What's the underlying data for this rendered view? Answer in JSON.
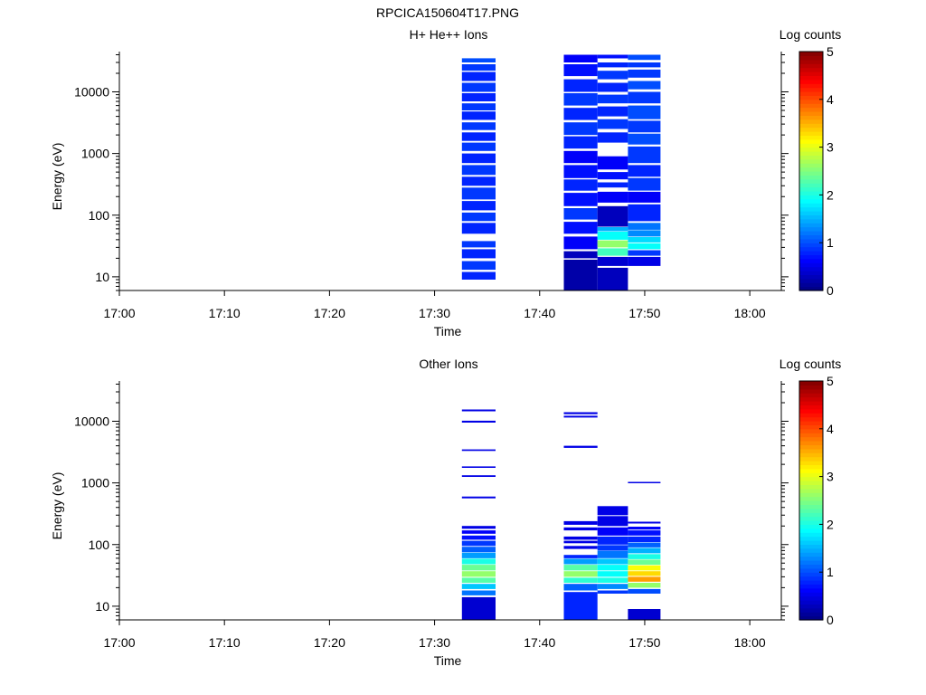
{
  "figure_title": "RPCICA150604T17.PNG",
  "colors": {
    "axis": "#000000",
    "background": "#ffffff"
  },
  "colorbar": {
    "label": "Log counts",
    "ticks": [
      "0",
      "1",
      "2",
      "3",
      "4",
      "5"
    ],
    "range": [
      0,
      5
    ],
    "colormap": "jet"
  },
  "chart_data": [
    {
      "type": "heatmap",
      "title": "H+ He++ Ions",
      "xlabel": "Time",
      "ylabel": "Energy (eV)",
      "yscale": "log",
      "xlim": [
        "17:00",
        "18:03"
      ],
      "ylim": [
        6,
        45000
      ],
      "xticks": [
        "17:00",
        "17:10",
        "17:20",
        "17:30",
        "17:40",
        "17:50",
        "18:00"
      ],
      "yticks": [
        "10",
        "100",
        "1000",
        "10000"
      ],
      "columns": [
        {
          "t0": "17:32.6",
          "t1": "17:35.8",
          "rows": [
            [
              30000,
              35000,
              1.0
            ],
            [
              22000,
              28000,
              0.9
            ],
            [
              15000,
              21000,
              0.8
            ],
            [
              10000,
              14000,
              0.9
            ],
            [
              7000,
              9500,
              0.8
            ],
            [
              5000,
              6500,
              0.9
            ],
            [
              3500,
              4800,
              0.8
            ],
            [
              2400,
              3200,
              0.9
            ],
            [
              1600,
              2200,
              0.8
            ],
            [
              1100,
              1500,
              0.9
            ],
            [
              700,
              1000,
              0.8
            ],
            [
              450,
              650,
              0.9
            ],
            [
              300,
              420,
              0.8
            ],
            [
              180,
              280,
              0.9
            ],
            [
              120,
              170,
              0.8
            ],
            [
              80,
              110,
              0.9
            ],
            [
              50,
              75,
              0.8
            ],
            [
              30,
              38,
              0.9
            ],
            [
              20,
              28,
              0.8
            ],
            [
              13,
              18,
              0.9
            ],
            [
              9,
              12,
              0.8
            ]
          ]
        },
        {
          "t0": "17:42.3",
          "t1": "17:45.5",
          "rows": [
            [
              30000,
              40000,
              0.6
            ],
            [
              18000,
              28000,
              0.7
            ],
            [
              10000,
              16000,
              0.8
            ],
            [
              6000,
              9500,
              0.9
            ],
            [
              3500,
              5500,
              0.8
            ],
            [
              2000,
              3200,
              0.9
            ],
            [
              1200,
              1900,
              0.8
            ],
            [
              700,
              1100,
              0.6
            ],
            [
              400,
              650,
              0.7
            ],
            [
              250,
              380,
              0.8
            ],
            [
              140,
              230,
              0.7
            ],
            [
              85,
              130,
              0.9
            ],
            [
              50,
              78,
              0.7
            ],
            [
              28,
              45,
              0.6
            ],
            [
              20,
              26,
              0.3
            ],
            [
              6,
              19,
              0.2
            ]
          ]
        },
        {
          "t0": "17:45.5",
          "t1": "17:48.4",
          "rows": [
            [
              35000,
              40000,
              0.7
            ],
            [
              25000,
              30000,
              0.8
            ],
            [
              16000,
              22000,
              0.9
            ],
            [
              10000,
              14000,
              0.8
            ],
            [
              6500,
              9000,
              0.9
            ],
            [
              4000,
              5800,
              0.8
            ],
            [
              2500,
              3600,
              0.9
            ],
            [
              1500,
              2200,
              0.8
            ],
            [
              550,
              900,
              0.6
            ],
            [
              380,
              500,
              0.7
            ],
            [
              280,
              340,
              0.8
            ],
            [
              160,
              240,
              0.6
            ],
            [
              65,
              140,
              0.3
            ],
            [
              55,
              64,
              1.5
            ],
            [
              40,
              54,
              1.9
            ],
            [
              30,
              39,
              2.6
            ],
            [
              22,
              29,
              2.2
            ],
            [
              15,
              21,
              0.4
            ],
            [
              6,
              14,
              0.3
            ]
          ]
        },
        {
          "t0": "17:48.4",
          "t1": "17:51.5",
          "rows": [
            [
              33000,
              40000,
              1.0
            ],
            [
              25000,
              30000,
              0.9
            ],
            [
              17000,
              23000,
              0.9
            ],
            [
              11000,
              15000,
              1.0
            ],
            [
              6500,
              10000,
              0.9
            ],
            [
              3600,
              6000,
              1.0
            ],
            [
              2200,
              3400,
              0.9
            ],
            [
              1400,
              2100,
              1.0
            ],
            [
              700,
              1300,
              0.9
            ],
            [
              420,
              650,
              0.8
            ],
            [
              250,
              400,
              0.9
            ],
            [
              160,
              240,
              0.6
            ],
            [
              80,
              150,
              0.8
            ],
            [
              58,
              75,
              1.2
            ],
            [
              45,
              57,
              1.3
            ],
            [
              36,
              44,
              1.7
            ],
            [
              28,
              35,
              1.9
            ],
            [
              22,
              27,
              0.9
            ],
            [
              15,
              21,
              0.5
            ]
          ]
        }
      ]
    },
    {
      "type": "heatmap",
      "title": "Other Ions",
      "xlabel": "Time",
      "ylabel": "Energy (eV)",
      "yscale": "log",
      "xlim": [
        "17:00",
        "18:03"
      ],
      "ylim": [
        6,
        45000
      ],
      "xticks": [
        "17:00",
        "17:10",
        "17:20",
        "17:30",
        "17:40",
        "17:50",
        "18:00"
      ],
      "yticks": [
        "10",
        "100",
        "1000",
        "10000"
      ],
      "columns": [
        {
          "t0": "17:32.6",
          "t1": "17:35.8",
          "rows": [
            [
              14500,
              15500,
              0.5
            ],
            [
              9500,
              10200,
              0.5
            ],
            [
              3300,
              3500,
              0.5
            ],
            [
              1750,
              1850,
              0.5
            ],
            [
              1250,
              1330,
              0.5
            ],
            [
              560,
              600,
              0.5
            ],
            [
              180,
              200,
              0.5
            ],
            [
              150,
              170,
              0.6
            ],
            [
              120,
              140,
              0.7
            ],
            [
              95,
              115,
              0.9
            ],
            [
              75,
              92,
              1.1
            ],
            [
              60,
              74,
              1.4
            ],
            [
              48,
              59,
              2.0
            ],
            [
              38,
              47,
              2.4
            ],
            [
              30,
              37,
              2.6
            ],
            [
              24,
              29,
              2.3
            ],
            [
              19,
              23,
              1.6
            ],
            [
              15,
              18,
              1.2
            ],
            [
              6,
              14,
              0.4
            ]
          ]
        },
        {
          "t0": "17:42.3",
          "t1": "17:45.5",
          "rows": [
            [
              13000,
              14000,
              0.5
            ],
            [
              11500,
              12300,
              0.5
            ],
            [
              3700,
              4000,
              0.5
            ],
            [
              210,
              240,
              0.5
            ],
            [
              170,
              190,
              0.5
            ],
            [
              120,
              135,
              0.5
            ],
            [
              105,
              115,
              0.5
            ],
            [
              85,
              95,
              0.5
            ],
            [
              60,
              68,
              0.8
            ],
            [
              48,
              59,
              1.4
            ],
            [
              38,
              47,
              2.3
            ],
            [
              30,
              37,
              2.6
            ],
            [
              24,
              29,
              2.1
            ],
            [
              18,
              23,
              1.1
            ],
            [
              6,
              17,
              0.8
            ]
          ]
        },
        {
          "t0": "17:45.5",
          "t1": "17:48.4",
          "rows": [
            [
              300,
              420,
              0.5
            ],
            [
              200,
              290,
              0.5
            ],
            [
              140,
              190,
              0.6
            ],
            [
              100,
              135,
              0.8
            ],
            [
              80,
              98,
              0.9
            ],
            [
              60,
              79,
              1.2
            ],
            [
              48,
              59,
              1.6
            ],
            [
              38,
              47,
              1.9
            ],
            [
              30,
              37,
              1.9
            ],
            [
              24,
              29,
              2.0
            ],
            [
              19,
              23,
              1.3
            ],
            [
              16,
              18,
              0.9
            ]
          ]
        },
        {
          "t0": "17:48.4",
          "t1": "17:51.5",
          "rows": [
            [
              990,
              1040,
              0.5
            ],
            [
              220,
              235,
              0.5
            ],
            [
              175,
              195,
              0.6
            ],
            [
              140,
              170,
              0.7
            ],
            [
              110,
              135,
              0.8
            ],
            [
              90,
              108,
              1.1
            ],
            [
              72,
              88,
              1.5
            ],
            [
              58,
              70,
              2.0
            ],
            [
              47,
              57,
              2.4
            ],
            [
              38,
              46,
              3.1
            ],
            [
              31,
              37,
              3.3
            ],
            [
              25,
              30,
              3.6
            ],
            [
              20,
              24,
              2.6
            ],
            [
              16,
              19,
              1.0
            ],
            [
              6,
              9,
              0.4
            ]
          ]
        }
      ]
    }
  ]
}
